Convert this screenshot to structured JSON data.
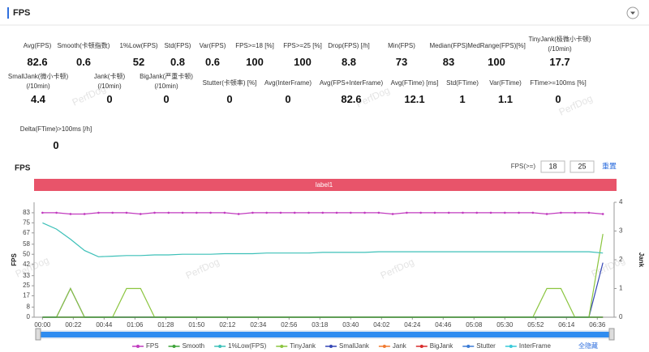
{
  "header": {
    "title": "FPS",
    "watermark": "PerfDog"
  },
  "stats": [
    [
      {
        "label": [
          "Avg(FPS)"
        ],
        "value": 82.6
      },
      {
        "label": [
          "Smooth(卡顿指数)"
        ],
        "value": 0.6
      },
      {
        "label": [
          "1%Low(FPS)"
        ],
        "value": 52
      },
      {
        "label": [
          "Std(FPS)"
        ],
        "value": 0.8
      },
      {
        "label": [
          "Var(FPS)"
        ],
        "value": 0.6
      },
      {
        "label": [
          "FPS>=18 [%]"
        ],
        "value": 100
      },
      {
        "label": [
          "FPS>=25 [%]"
        ],
        "value": 100
      },
      {
        "label": [
          "Drop(FPS) [/h]"
        ],
        "value": 8.8
      },
      {
        "label": [
          "Min(FPS)"
        ],
        "value": 73
      },
      {
        "label": [
          "Median(FPS)"
        ],
        "value": 83
      },
      {
        "label": [
          "MedRange(FPS)[%]"
        ],
        "value": 100
      },
      {
        "label": [
          "TinyJank(极微小卡顿)",
          "(/10min)"
        ],
        "value": 17.7
      }
    ],
    [
      {
        "label": [
          "SmallJank(微小卡顿)",
          "(/10min)"
        ],
        "value": 4.4
      },
      {
        "label": [
          "Jank(卡顿)",
          "(/10min)"
        ],
        "value": 0
      },
      {
        "label": [
          "BigJank(严重卡顿)",
          "(/10min)"
        ],
        "value": 0
      },
      {
        "label": [
          "Stutter(卡顿率) [%]"
        ],
        "value": 0
      },
      {
        "label": [
          "Avg(InterFrame)"
        ],
        "value": 0
      },
      {
        "label": [
          "Avg(FPS+InterFrame)"
        ],
        "value": 82.6
      },
      {
        "label": [
          "Avg(FTime) [ms]"
        ],
        "value": 12.1
      },
      {
        "label": [
          "Std(FTime)"
        ],
        "value": 1
      },
      {
        "label": [
          "Var(FTime)"
        ],
        "value": 1.1
      },
      {
        "label": [
          "FTime>=100ms [%]"
        ],
        "value": 0
      }
    ],
    [
      {
        "label": [
          "Delta(FTime)>100ms [/h]"
        ],
        "value": 0
      }
    ]
  ],
  "chart_data": {
    "type": "line",
    "title": "FPS",
    "band_label": "label1",
    "threshold_label": "FPS(>=)",
    "thresholds": [
      18,
      25
    ],
    "reset": "重置",
    "hide_all": "全隐藏",
    "y_label": "FPS",
    "y2_label": "Jank",
    "x": [
      0,
      10,
      20,
      30,
      40,
      50,
      60,
      70,
      80,
      90,
      100,
      110,
      120,
      130,
      140,
      150,
      160,
      170,
      180,
      190,
      200,
      210,
      220,
      230,
      240,
      250,
      260,
      270,
      280,
      290,
      300,
      310,
      320,
      330,
      340,
      350,
      360,
      370,
      380,
      390,
      400
    ],
    "xlim": [
      -6,
      408
    ],
    "xticks": [
      {
        "value": 0,
        "label": "00:00"
      },
      {
        "value": 22,
        "label": "00:22"
      },
      {
        "value": 44,
        "label": "00:44"
      },
      {
        "value": 66,
        "label": "01:06"
      },
      {
        "value": 88,
        "label": "01:28"
      },
      {
        "value": 110,
        "label": "01:50"
      },
      {
        "value": 132,
        "label": "02:12"
      },
      {
        "value": 154,
        "label": "02:34"
      },
      {
        "value": 176,
        "label": "02:56"
      },
      {
        "value": 198,
        "label": "03:18"
      },
      {
        "value": 220,
        "label": "03:40"
      },
      {
        "value": 242,
        "label": "04:02"
      },
      {
        "value": 264,
        "label": "04:24"
      },
      {
        "value": 286,
        "label": "04:46"
      },
      {
        "value": 308,
        "label": "05:08"
      },
      {
        "value": 330,
        "label": "05:30"
      },
      {
        "value": 352,
        "label": "05:52"
      },
      {
        "value": 374,
        "label": "06:14"
      },
      {
        "value": 396,
        "label": "06:36"
      }
    ],
    "ylim": [
      0,
      91.3
    ],
    "yticks": [
      0,
      8,
      17,
      25,
      33,
      42,
      50,
      58,
      67,
      75,
      83
    ],
    "y2lim": [
      0,
      4
    ],
    "y2ticks": [
      0,
      1,
      2,
      3,
      4
    ],
    "series": [
      {
        "name": "FPS",
        "color": "#c13bbf",
        "values": [
          83,
          83,
          82,
          82,
          83,
          83,
          83,
          82,
          83,
          83,
          83,
          83,
          83,
          83,
          82,
          83,
          83,
          83,
          83,
          83,
          83,
          83,
          83,
          83,
          83,
          82,
          83,
          83,
          83,
          83,
          83,
          83,
          83,
          83,
          83,
          83,
          82,
          83,
          83,
          83,
          82
        ]
      },
      {
        "name": "Smooth",
        "color": "#3fa43a",
        "axis": "y2",
        "values": [
          0,
          0,
          0,
          0,
          0,
          0,
          0,
          0,
          0,
          0,
          0,
          0,
          0,
          0,
          0,
          0,
          0,
          0,
          0,
          0,
          0,
          0,
          0,
          0,
          0,
          0,
          0,
          0,
          0,
          0,
          0,
          0,
          0,
          0,
          0,
          0,
          0,
          0,
          0,
          0,
          0
        ]
      },
      {
        "name": "1%Low(FPS)",
        "color": "#3cc0b8",
        "values": [
          75,
          70,
          62,
          53,
          48,
          48.5,
          49,
          49,
          49.5,
          49.5,
          50,
          50,
          50,
          50.5,
          50.5,
          50.5,
          51,
          51,
          51,
          51,
          51.5,
          51.5,
          51.5,
          51.5,
          52,
          52,
          52,
          52,
          52,
          52,
          52,
          52,
          52,
          52,
          52,
          52,
          52,
          52,
          52,
          52,
          51
        ]
      },
      {
        "name": "TinyJank",
        "color": "#8bc53f",
        "axis": "y2",
        "values": [
          0,
          0,
          1,
          0,
          0,
          0,
          1,
          1,
          0,
          0,
          0,
          0,
          0,
          0,
          0,
          0,
          0,
          0,
          0,
          0,
          0,
          0,
          0,
          0,
          0,
          0,
          0,
          0,
          0,
          0,
          0,
          0,
          0,
          0,
          0,
          0,
          1,
          1,
          0,
          0,
          2.9
        ]
      },
      {
        "name": "SmallJank",
        "color": "#3446b5",
        "axis": "y2",
        "values": [
          0,
          0,
          1,
          0,
          0,
          0,
          0,
          0,
          0,
          0,
          0,
          0,
          0,
          0,
          0,
          0,
          0,
          0,
          0,
          0,
          0,
          0,
          0,
          0,
          0,
          0,
          0,
          0,
          0,
          0,
          0,
          0,
          0,
          0,
          0,
          0,
          0,
          0,
          0,
          0,
          1.9
        ]
      },
      {
        "name": "Jank",
        "color": "#f07a31",
        "axis": "y2",
        "values": [
          0,
          0,
          0,
          0,
          0,
          0,
          0,
          0,
          0,
          0,
          0,
          0,
          0,
          0,
          0,
          0,
          0,
          0,
          0,
          0,
          0,
          0,
          0,
          0,
          0,
          0,
          0,
          0,
          0,
          0,
          0,
          0,
          0,
          0,
          0,
          0,
          0,
          0,
          0,
          0,
          0
        ]
      },
      {
        "name": "BigJank",
        "color": "#d92c2c",
        "axis": "y2",
        "values": [
          0,
          0,
          0,
          0,
          0,
          0,
          0,
          0,
          0,
          0,
          0,
          0,
          0,
          0,
          0,
          0,
          0,
          0,
          0,
          0,
          0,
          0,
          0,
          0,
          0,
          0,
          0,
          0,
          0,
          0,
          0,
          0,
          0,
          0,
          0,
          0,
          0,
          0,
          0,
          0,
          0
        ]
      },
      {
        "name": "Stutter",
        "color": "#3a7bd5",
        "axis": "y2",
        "values": [
          0,
          0,
          0,
          0,
          0,
          0,
          0,
          0,
          0,
          0,
          0,
          0,
          0,
          0,
          0,
          0,
          0,
          0,
          0,
          0,
          0,
          0,
          0,
          0,
          0,
          0,
          0,
          0,
          0,
          0,
          0,
          0,
          0,
          0,
          0,
          0,
          0,
          0,
          0,
          0,
          0
        ]
      },
      {
        "name": "InterFrame",
        "color": "#39c9d9",
        "values": [
          0,
          0,
          0,
          0,
          0,
          0,
          0,
          0,
          0,
          0,
          0,
          0,
          0,
          0,
          0,
          0,
          0,
          0,
          0,
          0,
          0,
          0,
          0,
          0,
          0,
          0,
          0,
          0,
          0,
          0,
          0,
          0,
          0,
          0,
          0,
          0,
          0,
          0,
          0,
          0,
          0
        ]
      }
    ]
  }
}
